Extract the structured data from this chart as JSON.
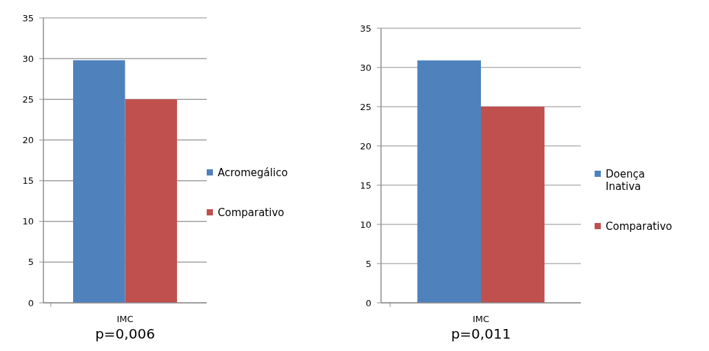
{
  "chart_data": [
    {
      "type": "bar",
      "categories": [
        "IMC"
      ],
      "series": [
        {
          "name": "Acromegálico",
          "color": "#4f81bd",
          "values": [
            29.8
          ]
        },
        {
          "name": "Comparativo",
          "color": "#c0504d",
          "values": [
            25
          ]
        }
      ],
      "ylim": [
        0,
        35
      ],
      "yticks": [
        0,
        5,
        10,
        15,
        20,
        25,
        30,
        35
      ],
      "grid": "y",
      "legend": "right",
      "annotations": [
        "p=0,006"
      ]
    },
    {
      "type": "bar",
      "categories": [
        "IMC"
      ],
      "series": [
        {
          "name": "Doença Inativa",
          "color": "#4f81bd",
          "values": [
            30.9
          ]
        },
        {
          "name": "Comparativo",
          "color": "#c0504d",
          "values": [
            25
          ]
        }
      ],
      "ylim": [
        0,
        35
      ],
      "yticks": [
        0,
        5,
        10,
        15,
        20,
        25,
        30,
        35
      ],
      "grid": "y",
      "legend": "right",
      "annotations": [
        "p=0,011"
      ]
    }
  ]
}
